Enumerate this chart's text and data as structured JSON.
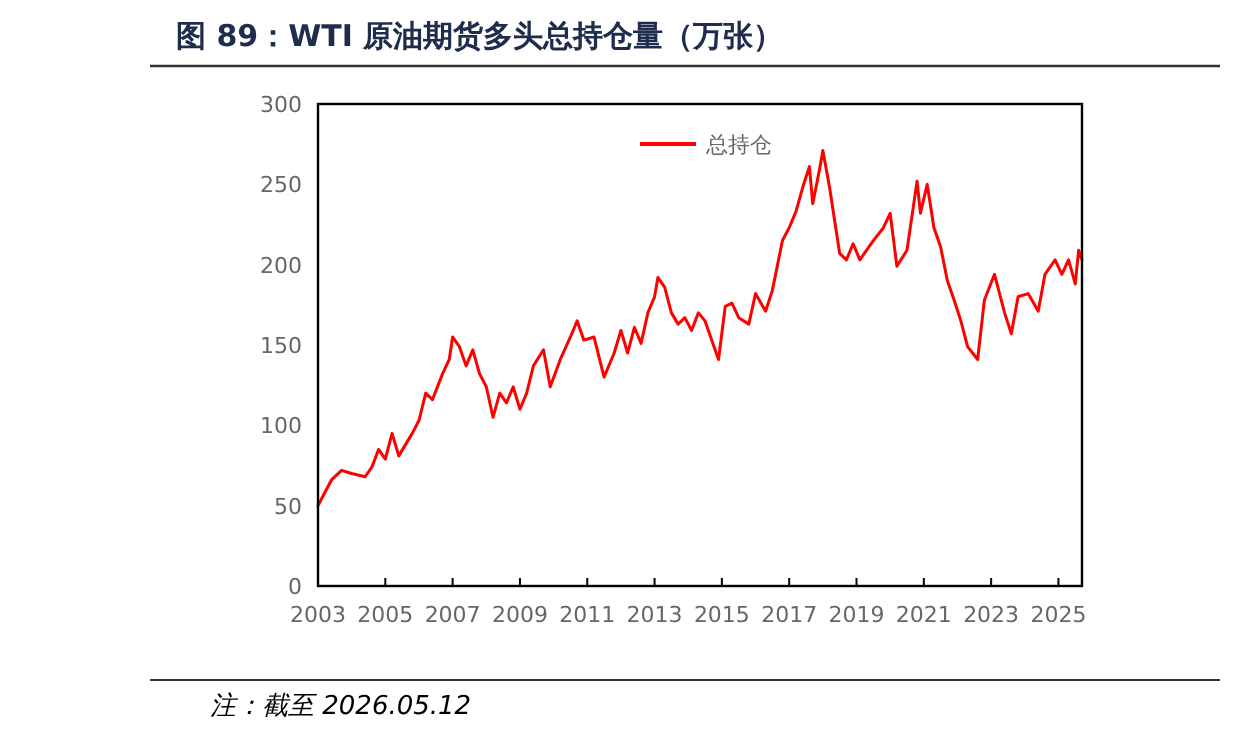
{
  "chart_data": {
    "type": "line",
    "title": "图 89：WTI 原油期货多头总持仓量（万张）",
    "annotations": [
      "注：截至 2026.05.12"
    ],
    "xlim": [
      2003,
      2025.7
    ],
    "xticks": [
      2003,
      2005,
      2007,
      2009,
      2011,
      2013,
      2015,
      2017,
      2019,
      2021,
      2023,
      2025
    ],
    "ylim": [
      0,
      300
    ],
    "yticks": [
      0,
      50,
      100,
      150,
      200,
      250,
      300
    ],
    "legend": "top",
    "grid": false,
    "series": [
      {
        "name": "总持仓",
        "color": "#ff0000",
        "x": [
          2003.0,
          2003.2,
          2003.4,
          2003.7,
          2004.0,
          2004.4,
          2004.6,
          2004.8,
          2005.0,
          2005.2,
          2005.4,
          2005.8,
          2006.0,
          2006.2,
          2006.4,
          2006.7,
          2006.9,
          2007.0,
          2007.2,
          2007.4,
          2007.6,
          2007.8,
          2008.0,
          2008.2,
          2008.4,
          2008.6,
          2008.8,
          2009.0,
          2009.2,
          2009.4,
          2009.7,
          2009.9,
          2010.2,
          2010.5,
          2010.7,
          2010.9,
          2011.2,
          2011.5,
          2011.8,
          2012.0,
          2012.2,
          2012.4,
          2012.6,
          2012.8,
          2013.0,
          2013.1,
          2013.3,
          2013.5,
          2013.7,
          2013.9,
          2014.1,
          2014.3,
          2014.5,
          2014.7,
          2014.9,
          2015.1,
          2015.3,
          2015.5,
          2015.8,
          2016.0,
          2016.3,
          2016.5,
          2016.8,
          2017.0,
          2017.2,
          2017.4,
          2017.6,
          2017.7,
          2017.9,
          2018.0,
          2018.2,
          2018.5,
          2018.7,
          2018.9,
          2019.1,
          2019.3,
          2019.5,
          2019.8,
          2020.0,
          2020.2,
          2020.5,
          2020.8,
          2020.9,
          2021.1,
          2021.3,
          2021.5,
          2021.7,
          2021.9,
          2022.1,
          2022.3,
          2022.6,
          2022.8,
          2023.1,
          2023.4,
          2023.6,
          2023.8,
          2024.1,
          2024.4,
          2024.6,
          2024.9,
          2025.1,
          2025.3,
          2025.5,
          2025.6,
          2025.7
        ],
        "values": [
          50,
          58,
          66,
          72,
          70,
          68,
          74,
          85,
          79,
          95,
          81,
          95,
          103,
          120,
          116,
          132,
          141,
          155,
          149,
          137,
          147,
          132,
          124,
          105,
          120,
          114,
          124,
          110,
          120,
          137,
          147,
          124,
          141,
          155,
          165,
          153,
          155,
          130,
          145,
          159,
          145,
          161,
          151,
          170,
          180,
          192,
          186,
          170,
          163,
          167,
          159,
          170,
          165,
          153,
          141,
          174,
          176,
          167,
          163,
          182,
          171,
          184,
          215,
          223,
          233,
          248,
          261,
          238,
          259,
          271,
          248,
          207,
          203,
          213,
          203,
          209,
          215,
          223,
          232,
          199,
          209,
          252,
          232,
          250,
          223,
          211,
          190,
          178,
          165,
          149,
          141,
          178,
          194,
          170,
          157,
          180,
          182,
          171,
          194,
          203,
          194,
          203,
          188,
          209,
          203
        ]
      }
    ]
  }
}
